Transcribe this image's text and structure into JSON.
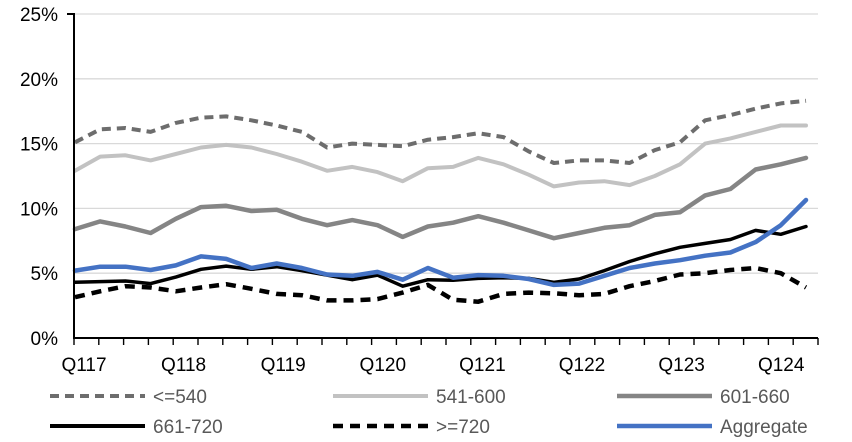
{
  "chart_data": {
    "type": "line",
    "title": "",
    "xlabel": "",
    "ylabel": "",
    "ylim": [
      0,
      25
    ],
    "ytick_step": 5,
    "ytick_labels": [
      "0%",
      "5%",
      "10%",
      "15%",
      "20%",
      "25%"
    ],
    "x_axis_labels": [
      "Q117",
      "Q118",
      "Q119",
      "Q120",
      "Q121",
      "Q122",
      "Q123",
      "Q124"
    ],
    "categories": [
      "2017Q1",
      "2017Q2",
      "2017Q3",
      "2017Q4",
      "2018Q1",
      "2018Q2",
      "2018Q3",
      "2018Q4",
      "2019Q1",
      "2019Q2",
      "2019Q3",
      "2019Q4",
      "2020Q1",
      "2020Q2",
      "2020Q3",
      "2020Q4",
      "2021Q1",
      "2021Q2",
      "2021Q3",
      "2021Q4",
      "2022Q1",
      "2022Q2",
      "2022Q3",
      "2022Q4",
      "2023Q1",
      "2023Q2",
      "2023Q3",
      "2023Q4",
      "2024Q1",
      "2024Q2"
    ],
    "grid": "horizontal",
    "legend_position": "bottom",
    "series": [
      {
        "name": "<=540",
        "color": "#6d6d6d",
        "dash": "9 6",
        "width": 4,
        "values": [
          15.1,
          16.1,
          16.2,
          15.9,
          16.6,
          17.0,
          17.1,
          16.8,
          16.4,
          15.9,
          14.7,
          15.0,
          14.9,
          14.8,
          15.3,
          15.5,
          15.8,
          15.5,
          14.4,
          13.5,
          13.7,
          13.7,
          13.5,
          14.5,
          15.1,
          16.8,
          17.2,
          17.7,
          18.1,
          18.3
        ]
      },
      {
        "name": "541-600",
        "color": "#c2c2c2",
        "dash": null,
        "width": 4,
        "values": [
          12.9,
          14.0,
          14.1,
          13.7,
          14.2,
          14.7,
          14.9,
          14.7,
          14.2,
          13.6,
          12.9,
          13.2,
          12.8,
          12.1,
          13.1,
          13.2,
          13.9,
          13.4,
          12.6,
          11.7,
          12.0,
          12.1,
          11.8,
          12.5,
          13.4,
          15.0,
          15.4,
          15.9,
          16.4,
          16.4
        ]
      },
      {
        "name": "601-660",
        "color": "#858585",
        "dash": null,
        "width": 4.5,
        "values": [
          8.4,
          9.0,
          8.6,
          8.1,
          9.2,
          10.1,
          10.2,
          9.8,
          9.9,
          9.2,
          8.7,
          9.1,
          8.7,
          7.8,
          8.6,
          8.9,
          9.4,
          8.9,
          8.3,
          7.7,
          8.1,
          8.5,
          8.7,
          9.5,
          9.7,
          11.0,
          11.5,
          13.0,
          13.4,
          13.9
        ]
      },
      {
        "name": "661-720",
        "color": "#000000",
        "dash": null,
        "width": 3.5,
        "values": [
          4.3,
          4.35,
          4.4,
          4.2,
          4.7,
          5.3,
          5.55,
          5.3,
          5.5,
          5.2,
          4.85,
          4.5,
          4.85,
          4.0,
          4.5,
          4.45,
          4.6,
          4.65,
          4.6,
          4.3,
          4.55,
          5.2,
          5.9,
          6.5,
          7.0,
          7.3,
          7.6,
          8.3,
          8.0,
          8.6
        ]
      },
      {
        "name": ">=720",
        "color": "#000000",
        "dash": "10 7",
        "width": 4.5,
        "values": [
          3.15,
          3.6,
          4.0,
          3.9,
          3.6,
          3.9,
          4.15,
          3.8,
          3.4,
          3.3,
          2.9,
          2.9,
          3.0,
          3.5,
          4.1,
          2.95,
          2.8,
          3.4,
          3.5,
          3.45,
          3.3,
          3.4,
          4.0,
          4.4,
          4.9,
          5.0,
          5.25,
          5.4,
          5.0,
          3.9
        ]
      },
      {
        "name": "Aggregate",
        "color": "#4472c4",
        "dash": null,
        "width": 4.5,
        "values": [
          5.2,
          5.5,
          5.5,
          5.25,
          5.6,
          6.3,
          6.1,
          5.4,
          5.75,
          5.4,
          4.9,
          4.8,
          5.1,
          4.5,
          5.4,
          4.65,
          4.85,
          4.8,
          4.55,
          4.1,
          4.2,
          4.8,
          5.4,
          5.75,
          6.0,
          6.35,
          6.6,
          7.4,
          8.7,
          10.65
        ]
      }
    ]
  },
  "colors": {
    "gridline": "#d9d9d9",
    "axis": "#000000",
    "tick_label": "#000000",
    "legend_text": "#595959",
    "background": "#ffffff"
  }
}
